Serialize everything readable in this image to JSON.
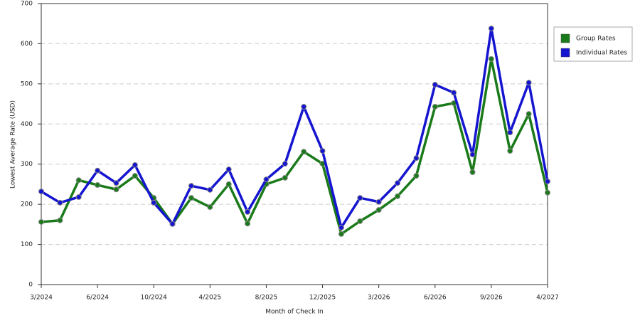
{
  "chart_data": {
    "type": "line",
    "x_label": "Month of Check In",
    "y_label": "Lowest Average Rate (USD)",
    "categories": [
      "3/2024",
      null,
      null,
      "6/2024",
      null,
      null,
      "10/2024",
      null,
      null,
      "4/2025",
      null,
      null,
      "8/2025",
      null,
      null,
      "12/2025",
      null,
      null,
      "3/2026",
      null,
      null,
      "6/2026",
      null,
      null,
      "9/2026",
      null,
      null,
      "4/2027"
    ],
    "series": [
      {
        "name": "Group Rates",
        "color": "#1a7a1a",
        "values": [
          156,
          160,
          260,
          248,
          237,
          271,
          216,
          151,
          216,
          193,
          250,
          152,
          250,
          266,
          331,
          301,
          126,
          158,
          186,
          220,
          271,
          443,
          452,
          280,
          562,
          333,
          425,
          229
        ]
      },
      {
        "name": "Individual Rates",
        "color": "#1515d0",
        "values": [
          232,
          204,
          218,
          284,
          253,
          298,
          204,
          151,
          246,
          236,
          287,
          181,
          262,
          301,
          443,
          333,
          142,
          216,
          206,
          253,
          315,
          498,
          478,
          324,
          638,
          379,
          503,
          257
        ]
      }
    ],
    "ylim": [
      0,
      700
    ],
    "yticks": [
      0,
      100,
      200,
      300,
      400,
      500,
      600,
      700
    ],
    "grid": true,
    "legend": "right"
  }
}
